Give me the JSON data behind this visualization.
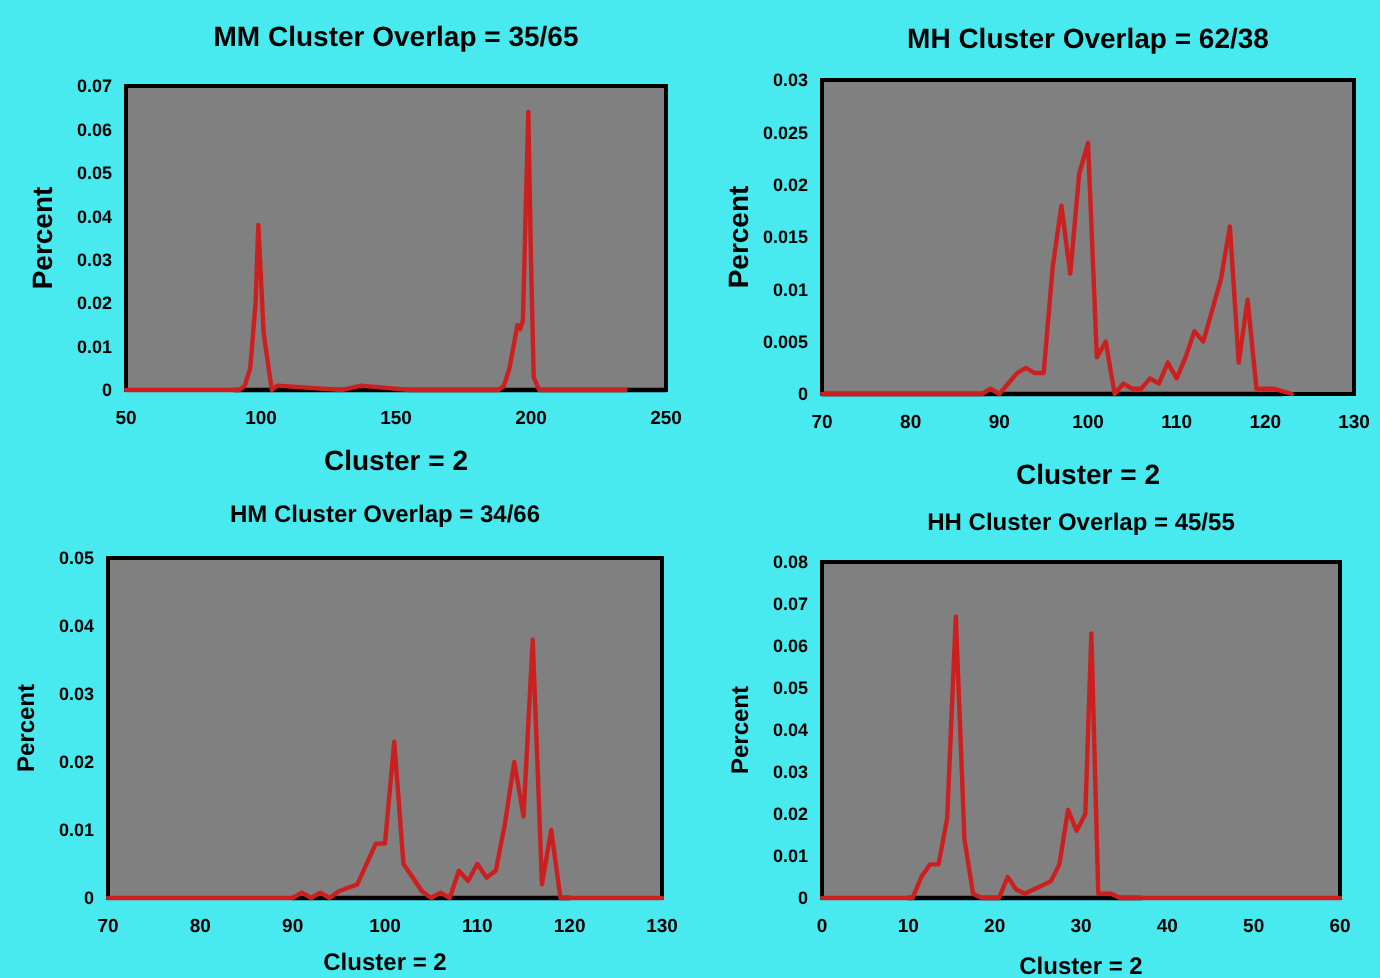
{
  "chart_data": [
    {
      "type": "line",
      "title": "MM Cluster Overlap = 35/65",
      "xlabel": "Cluster = 2",
      "ylabel": "Percent",
      "xlim": [
        50,
        250
      ],
      "xticks": [
        50,
        100,
        150,
        200,
        250
      ],
      "ylim": [
        0,
        0.07
      ],
      "yticks": [
        0,
        0.01,
        0.02,
        0.03,
        0.04,
        0.05,
        0.06,
        0.07
      ],
      "series": [
        {
          "color": "#000000",
          "x": [
            90,
            250
          ],
          "values": [
            0,
            0
          ]
        },
        {
          "color": "#cc1f1f",
          "x": [
            50,
            92,
            94,
            96,
            98,
            99,
            101,
            104,
            106,
            130,
            137,
            155,
            188,
            190,
            192,
            195,
            196,
            197,
            198,
            199,
            200,
            201,
            203,
            205,
            235
          ],
          "values": [
            0,
            0,
            0.001,
            0.005,
            0.02,
            0.038,
            0.013,
            0,
            0.001,
            0,
            0.001,
            0,
            0,
            0.001,
            0.005,
            0.015,
            0.014,
            0.016,
            0.04,
            0.064,
            0.03,
            0.003,
            0,
            0,
            0
          ]
        }
      ]
    },
    {
      "type": "line",
      "title": "MH Cluster Overlap = 62/38",
      "xlabel": "Cluster = 2",
      "ylabel": "Percent",
      "xlim": [
        70,
        130
      ],
      "xticks": [
        70,
        80,
        90,
        100,
        110,
        120,
        130
      ],
      "ylim": [
        0,
        0.03
      ],
      "yticks": [
        0,
        0.005,
        0.01,
        0.015,
        0.02,
        0.025,
        0.03
      ],
      "series": [
        {
          "color": "#000000",
          "x": [
            70,
            122
          ],
          "values": [
            0,
            0
          ]
        },
        {
          "color": "#cc1f1f",
          "x": [
            70,
            82,
            88,
            89,
            90,
            91,
            92,
            93,
            94,
            95,
            96,
            97,
            98,
            99,
            100,
            101,
            102,
            103,
            104,
            105,
            106,
            107,
            108,
            109,
            110,
            111,
            112,
            113,
            114,
            115,
            116,
            117,
            118,
            119,
            120,
            121,
            123
          ],
          "values": [
            0,
            0,
            0,
            0.0005,
            0,
            0.001,
            0.002,
            0.0025,
            0.002,
            0.002,
            0.012,
            0.018,
            0.0115,
            0.021,
            0.024,
            0.0035,
            0.005,
            0,
            0.001,
            0.0005,
            0.0005,
            0.0015,
            0.001,
            0.003,
            0.0015,
            0.0035,
            0.006,
            0.005,
            0.008,
            0.011,
            0.016,
            0.003,
            0.009,
            0.0005,
            0.0005,
            0.0005,
            0
          ]
        }
      ]
    },
    {
      "type": "line",
      "title": "HM Cluster Overlap = 34/66",
      "xlabel": "Cluster = 2",
      "ylabel": "Percent",
      "xlim": [
        70,
        130
      ],
      "xticks": [
        70,
        80,
        90,
        100,
        110,
        120,
        130
      ],
      "ylim": [
        0,
        0.05
      ],
      "yticks": [
        0,
        0.01,
        0.02,
        0.03,
        0.04,
        0.05
      ],
      "series": [
        {
          "color": "#000000",
          "x": [
            90,
            120
          ],
          "values": [
            0,
            0
          ]
        },
        {
          "color": "#cc1f1f",
          "x": [
            70,
            90,
            91,
            92,
            93,
            94,
            95,
            96,
            97,
            98,
            99,
            100,
            101,
            102,
            103,
            104,
            105,
            106,
            107,
            108,
            109,
            110,
            111,
            112,
            113,
            114,
            115,
            116,
            117,
            118,
            119,
            120,
            130
          ],
          "values": [
            0,
            0,
            0.0008,
            0,
            0.0008,
            0,
            0.001,
            0.0015,
            0.002,
            0.005,
            0.008,
            0.008,
            0.023,
            0.005,
            0.003,
            0.001,
            0,
            0.0008,
            0,
            0.004,
            0.0025,
            0.005,
            0.003,
            0.004,
            0.011,
            0.02,
            0.012,
            0.038,
            0.002,
            0.01,
            0,
            0,
            0
          ]
        }
      ]
    },
    {
      "type": "line",
      "title": "HH Cluster Overlap = 45/55",
      "xlabel": "Cluster = 2",
      "ylabel": "Percent",
      "xlim": [
        0,
        60
      ],
      "xticks": [
        0,
        10,
        20,
        30,
        40,
        50,
        60
      ],
      "ylim": [
        0,
        0.08
      ],
      "yticks": [
        0,
        0.01,
        0.02,
        0.03,
        0.04,
        0.05,
        0.06,
        0.07,
        0.08
      ],
      "series": [
        {
          "color": "#000000",
          "x": [
            10,
            37
          ],
          "values": [
            0,
            0
          ]
        },
        {
          "color": "#cc1f1f",
          "x": [
            0,
            10.5,
            11.5,
            12.5,
            13.5,
            14.5,
            15.5,
            16.5,
            17.5,
            18.5,
            20.5,
            21.5,
            22.5,
            23.5,
            24.5,
            25.5,
            26.5,
            27.5,
            28.5,
            29.5,
            30.5,
            31.2,
            32,
            33.5,
            34.5,
            60
          ],
          "values": [
            0,
            0,
            0.005,
            0.008,
            0.008,
            0.019,
            0.067,
            0.014,
            0.001,
            0,
            0,
            0.005,
            0.002,
            0.001,
            0.002,
            0.003,
            0.004,
            0.008,
            0.021,
            0.016,
            0.02,
            0.063,
            0.001,
            0.001,
            0,
            0
          ]
        }
      ]
    }
  ]
}
